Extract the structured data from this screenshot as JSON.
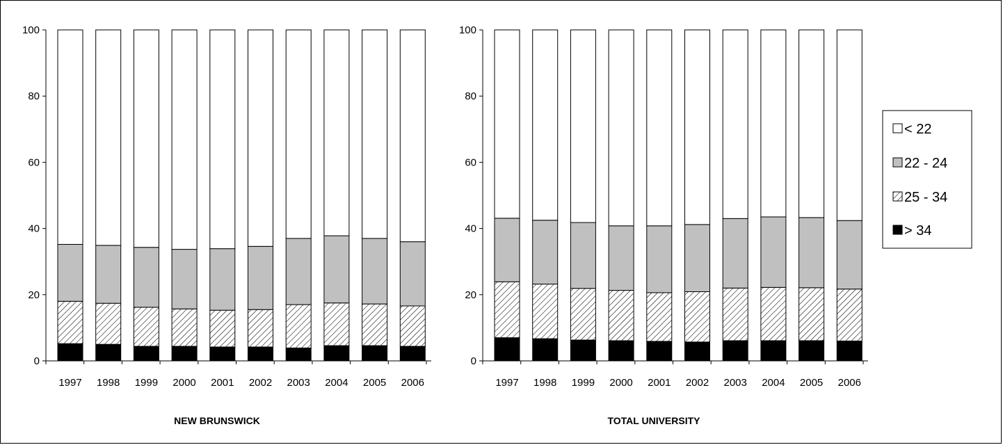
{
  "colors": {
    "lt22": "#ffffff",
    "22to24": "#c0c0c0",
    "25to34": "hatched",
    "gt34": "#000000"
  },
  "legend": {
    "items": [
      "< 22",
      "22 - 24",
      "25 - 34",
      "> 34"
    ]
  },
  "chart_data": [
    {
      "type": "bar",
      "stacked": true,
      "title": "NEW BRUNSWICK",
      "categories": [
        "1997",
        "1998",
        "1999",
        "2000",
        "2001",
        "2002",
        "2003",
        "2004",
        "2005",
        "2006"
      ],
      "ylim": [
        0,
        100
      ],
      "yticks": [
        "0",
        "20",
        "40",
        "60",
        "80",
        "100"
      ],
      "series": [
        {
          "name": "> 34",
          "values": [
            5.2,
            5.0,
            4.4,
            4.4,
            4.2,
            4.2,
            3.9,
            4.6,
            4.6,
            4.4
          ]
        },
        {
          "name": "25 - 34",
          "values": [
            12.8,
            12.4,
            11.8,
            11.3,
            11.1,
            11.3,
            13.1,
            12.9,
            12.6,
            12.2
          ]
        },
        {
          "name": "22 - 24",
          "values": [
            17.2,
            17.5,
            18.1,
            18.0,
            18.6,
            19.1,
            20.0,
            20.3,
            19.8,
            19.4
          ]
        },
        {
          "name": "< 22",
          "values": [
            64.8,
            65.1,
            65.7,
            66.3,
            66.1,
            65.4,
            63.0,
            62.2,
            63.0,
            64.0
          ]
        }
      ],
      "grid": false,
      "legend_position": "right"
    },
    {
      "type": "bar",
      "stacked": true,
      "title": "TOTAL UNIVERSITY",
      "categories": [
        "1997",
        "1998",
        "1999",
        "2000",
        "2001",
        "2002",
        "2003",
        "2004",
        "2005",
        "2006"
      ],
      "ylim": [
        0,
        100
      ],
      "yticks": [
        "0",
        "20",
        "40",
        "60",
        "80",
        "100"
      ],
      "series": [
        {
          "name": "> 34",
          "values": [
            7.0,
            6.7,
            6.3,
            6.1,
            5.9,
            5.7,
            6.1,
            6.1,
            6.1,
            6.0
          ]
        },
        {
          "name": "25 - 34",
          "values": [
            16.9,
            16.5,
            15.6,
            15.2,
            14.7,
            15.2,
            15.9,
            16.1,
            16.0,
            15.7
          ]
        },
        {
          "name": "22 - 24",
          "values": [
            19.2,
            19.3,
            19.9,
            19.5,
            20.2,
            20.3,
            21.0,
            21.3,
            21.2,
            20.7
          ]
        },
        {
          "name": "< 22",
          "values": [
            56.9,
            57.5,
            58.2,
            59.2,
            59.2,
            58.8,
            57.0,
            56.5,
            56.7,
            57.6
          ]
        }
      ],
      "grid": false,
      "legend_position": "right"
    }
  ]
}
